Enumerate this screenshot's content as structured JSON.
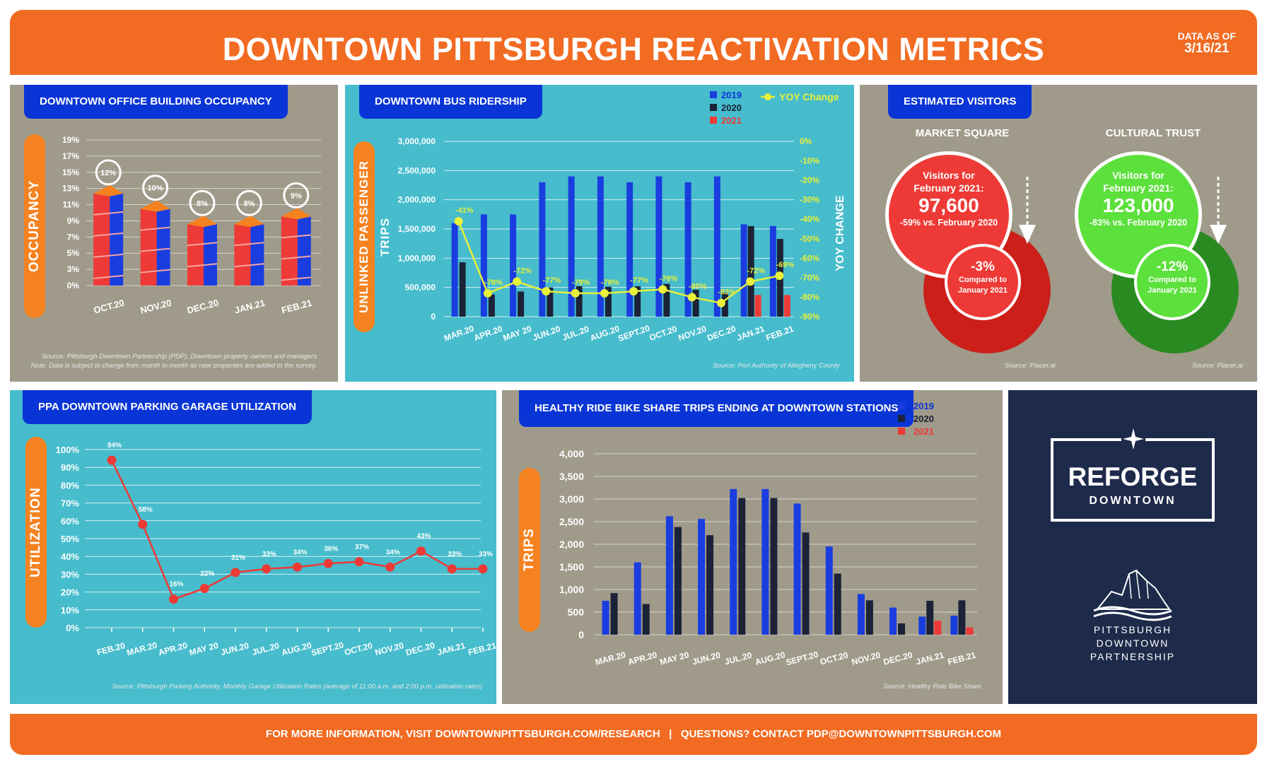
{
  "header": {
    "title": "DOWNTOWN PITTSBURGH REACTIVATION METRICS",
    "data_as_of_label": "DATA AS OF",
    "data_as_of_date": "3/16/21"
  },
  "footer": {
    "text": "FOR MORE INFORMATION, VISIT DOWNTOWNPITTSBURGH.COM/RESEARCH   |   QUESTIONS? CONTACT PDP@DOWNTOWNPITTSBURGH.COM"
  },
  "colors": {
    "orange": "#f26b22",
    "blue_tag": "#0a35d6",
    "taupe": "#a09a8a",
    "teal": "#46bccc",
    "navy": "#1e2a4a",
    "series_2019": "#1a3de0",
    "series_2020": "#1c2237",
    "series_2021": "#ee3a36",
    "yoy": "#e8f03a"
  },
  "occupancy": {
    "tag": "DOWNTOWN OFFICE BUILDING OCCUPANCY",
    "axis_label": "OCCUPANCY",
    "source_line1": "Source: Pittsburgh Downtown Partnership (PDP), Downtown property owners and managers",
    "source_line2": "Note: Data is subject to change from month to month as new properties are added to the survey."
  },
  "bus": {
    "tag": "DOWNTOWN BUS RIDERSHIP",
    "axis_label": "UNLINKED PASSENGER TRIPS",
    "right_axis_label": "YOY CHANGE",
    "legend": {
      "y2019": "2019",
      "y2020": "2020",
      "y2021": "2021",
      "yoy": "YOY Change"
    },
    "source": "Source: Port Authority of Allegheny County"
  },
  "visitors": {
    "tag": "ESTIMATED VISITORS",
    "market_square": {
      "title": "MARKET SQUARE",
      "line1": "Visitors for",
      "line2": "February 2021:",
      "value": "97,600",
      "yoy": "-59% vs. February 2020",
      "mom_value": "-3%",
      "mom_line1": "Compared to",
      "mom_line2": "January 2021",
      "source": "Source: Placer.ai"
    },
    "cultural_trust": {
      "title": "CULTURAL TRUST",
      "line1": "Visitors for",
      "line2": "February 2021:",
      "value": "123,000",
      "yoy": "-83% vs. February 2020",
      "mom_value": "-12%",
      "mom_line1": "Compared to",
      "mom_line2": "January 2021",
      "source": "Source: Placer.ai"
    }
  },
  "parking": {
    "tag": "PPA DOWNTOWN PARKING GARAGE UTILIZATION",
    "axis_label": "UTILIZATION",
    "source": "Source: Pittsburgh Parking Authority, Monthly Garage Utilization Rates (average of 11:00 a.m. and 2:00 p.m. utilization rates)"
  },
  "bike": {
    "tag": "HEALTHY RIDE BIKE SHARE TRIPS ENDING AT DOWNTOWN STATIONS",
    "axis_label": "TRIPS",
    "legend": {
      "y2019": "2019",
      "y2020": "2020",
      "y2021": "2021"
    },
    "source": "Source: Healthy Ride Bike Share"
  },
  "brand": {
    "reforge_line1": "REFORGE",
    "reforge_line2": "DOWNTOWN",
    "pdp_line1": "PITTSBURGH",
    "pdp_line2": "DOWNTOWN",
    "pdp_line3": "PARTNERSHIP"
  },
  "chart_data": [
    {
      "id": "occupancy",
      "type": "bar",
      "title": "DOWNTOWN OFFICE BUILDING OCCUPANCY",
      "ylabel": "OCCUPANCY",
      "categories": [
        "OCT.20",
        "NOV.20",
        "DEC.20",
        "JAN.21",
        "FEB.21"
      ],
      "values": [
        12,
        10,
        8,
        8,
        9
      ],
      "data_labels": [
        "12%",
        "10%",
        "8%",
        "8%",
        "9%"
      ],
      "yticks": [
        "0%",
        "3%",
        "5%",
        "7%",
        "9%",
        "11%",
        "13%",
        "15%",
        "17%",
        "19%"
      ],
      "ylim": [
        0,
        19
      ]
    },
    {
      "id": "bus",
      "type": "bar",
      "title": "DOWNTOWN BUS RIDERSHIP",
      "ylabel": "UNLINKED PASSENGER TRIPS",
      "y2label": "YOY CHANGE",
      "categories": [
        "MAR.20",
        "APR.20",
        "MAY 20",
        "JUN.20",
        "JUL.20",
        "AUG.20",
        "SEPT.20",
        "OCT.20",
        "NOV.20",
        "DEC.20",
        "JAN.21",
        "FEB.21"
      ],
      "series": [
        {
          "name": "2019",
          "values": [
            1600000,
            1750000,
            1750000,
            2300000,
            2400000,
            2400000,
            2300000,
            2400000,
            2300000,
            2400000,
            1580000,
            1550000
          ]
        },
        {
          "name": "2020",
          "values": [
            930000,
            380000,
            430000,
            500000,
            520000,
            510000,
            520000,
            560000,
            460000,
            410000,
            1550000,
            1330000
          ]
        },
        {
          "name": "2021",
          "values": [
            null,
            null,
            null,
            null,
            null,
            null,
            null,
            null,
            null,
            null,
            370000,
            370000
          ]
        },
        {
          "name": "YOY Change",
          "axis": "right",
          "type": "line",
          "values": [
            -41,
            -78,
            -72,
            -77,
            -78,
            -78,
            -77,
            -76,
            -80,
            -83,
            -72,
            -69
          ]
        }
      ],
      "yoy_labels": [
        "-41%",
        "-78%",
        "-72%",
        "-77%",
        "-78%",
        "-78%",
        "-77%",
        "-76%",
        "-80%",
        "-83%",
        "-72%",
        "-69%"
      ],
      "yticks": [
        "0",
        "500,000",
        "1,000,000",
        "1,500,000",
        "2,000,000",
        "2,500,000",
        "3,000,000"
      ],
      "y2ticks": [
        "0%",
        "-10%",
        "-20%",
        "-30%",
        "-40%",
        "-50%",
        "-60%",
        "-70%",
        "-80%",
        "-90%"
      ],
      "ylim": [
        0,
        3000000
      ],
      "y2lim": [
        -90,
        0
      ],
      "legend": "top-right"
    },
    {
      "id": "parking",
      "type": "line",
      "title": "PPA DOWNTOWN PARKING GARAGE UTILIZATION",
      "ylabel": "UTILIZATION",
      "categories": [
        "FEB.20",
        "MAR.20",
        "APR.20",
        "MAY 20",
        "JUN.20",
        "JUL.20",
        "AUG.20",
        "SEPT.20",
        "OCT.20",
        "NOV.20",
        "DEC.20",
        "JAN.21",
        "FEB.21"
      ],
      "values": [
        94,
        58,
        16,
        22,
        31,
        33,
        34,
        36,
        37,
        34,
        43,
        33,
        33
      ],
      "data_labels": [
        "94%",
        "58%",
        "16%",
        "22%",
        "31%",
        "33%",
        "34%",
        "36%",
        "37%",
        "34%",
        "43%",
        "33%",
        "33%"
      ],
      "yticks": [
        "0%",
        "10%",
        "20%",
        "30%",
        "40%",
        "50%",
        "60%",
        "70%",
        "80%",
        "90%",
        "100%"
      ],
      "ylim": [
        0,
        100
      ]
    },
    {
      "id": "bike",
      "type": "bar",
      "title": "HEALTHY RIDE BIKE SHARE TRIPS ENDING AT DOWNTOWN STATIONS",
      "ylabel": "TRIPS",
      "categories": [
        "MAR.20",
        "APR.20",
        "MAY 20",
        "JUN.20",
        "JUL.20",
        "AUG.20",
        "SEPT.20",
        "OCT.20",
        "NOV.20",
        "DEC.20",
        "JAN.21",
        "FEB.21"
      ],
      "series": [
        {
          "name": "2019",
          "values": [
            750,
            1600,
            2620,
            2560,
            3220,
            3220,
            2900,
            1950,
            900,
            600,
            400,
            420
          ]
        },
        {
          "name": "2020",
          "values": [
            920,
            680,
            2380,
            2200,
            3020,
            3020,
            2260,
            1350,
            760,
            250,
            750,
            760
          ]
        },
        {
          "name": "2021",
          "values": [
            null,
            null,
            null,
            null,
            null,
            null,
            null,
            null,
            null,
            null,
            310,
            160
          ]
        }
      ],
      "yticks": [
        "0",
        "500",
        "1,000",
        "1,500",
        "2,000",
        "2,500",
        "3,000",
        "3,500",
        "4,000"
      ],
      "ylim": [
        0,
        4000
      ],
      "legend": "top-right"
    }
  ]
}
